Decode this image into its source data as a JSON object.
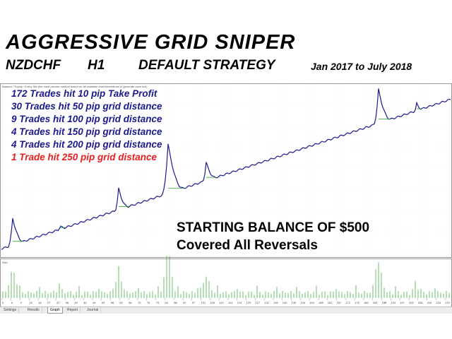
{
  "header": {
    "title": "AGGRESSIVE GRID SNIPER",
    "pair": "NZDCHF",
    "timeframe": "H1",
    "strategy": "DEFAULT STRATEGY",
    "period": "Jan 2017 to July 2018"
  },
  "chart": {
    "legend_text": "Balance / Equity / Every tick (the most precise method based on all available least timeframes to generate each tick)",
    "volume_label": "Size",
    "balance_color": "#1a1a8c",
    "equity_color": "#2ca02c",
    "volume_color": "#2ca02c"
  },
  "stats": [
    {
      "text": "172 Trades hit 10 pip Take Profit",
      "color": "#1a1a8c"
    },
    {
      "text": "30 Trades hit 50 pip grid distance",
      "color": "#1a1a8c"
    },
    {
      "text": "9 Trades hit 100 pip grid distance",
      "color": "#1a1a8c"
    },
    {
      "text": "4 Trades hit 150 pip grid distance",
      "color": "#1a1a8c"
    },
    {
      "text": "4 Trades hit 200 pip grid distance",
      "color": "#1a1a8c"
    },
    {
      "text": "1 Trade hit 250 pip grid distance",
      "color": "#e61e1e"
    }
  ],
  "annotation": {
    "line1": "STARTING BALANCE OF $500",
    "line2": "Covered All Reversals"
  },
  "x_ticks": [
    "0",
    "8",
    "9",
    "16",
    "18",
    "27",
    "31",
    "36",
    "40",
    "45",
    "49",
    "53",
    "58",
    "62",
    "66",
    "70",
    "75",
    "79",
    "84",
    "88",
    "92",
    "97",
    "101",
    "105",
    "110",
    "114",
    "119",
    "123",
    "127",
    "132",
    "136",
    "140",
    "145",
    "149",
    "154",
    "158",
    "162",
    "167",
    "171",
    "175",
    "180",
    "184",
    "188",
    "193",
    "197",
    "202",
    "206",
    "210",
    "215",
    "219"
  ],
  "tabs": [
    {
      "label": "Settings",
      "active": false
    },
    {
      "label": "Results",
      "active": false
    },
    {
      "label": "Graph",
      "active": true
    },
    {
      "label": "Report",
      "active": false
    },
    {
      "label": "Journal",
      "active": false
    }
  ]
}
